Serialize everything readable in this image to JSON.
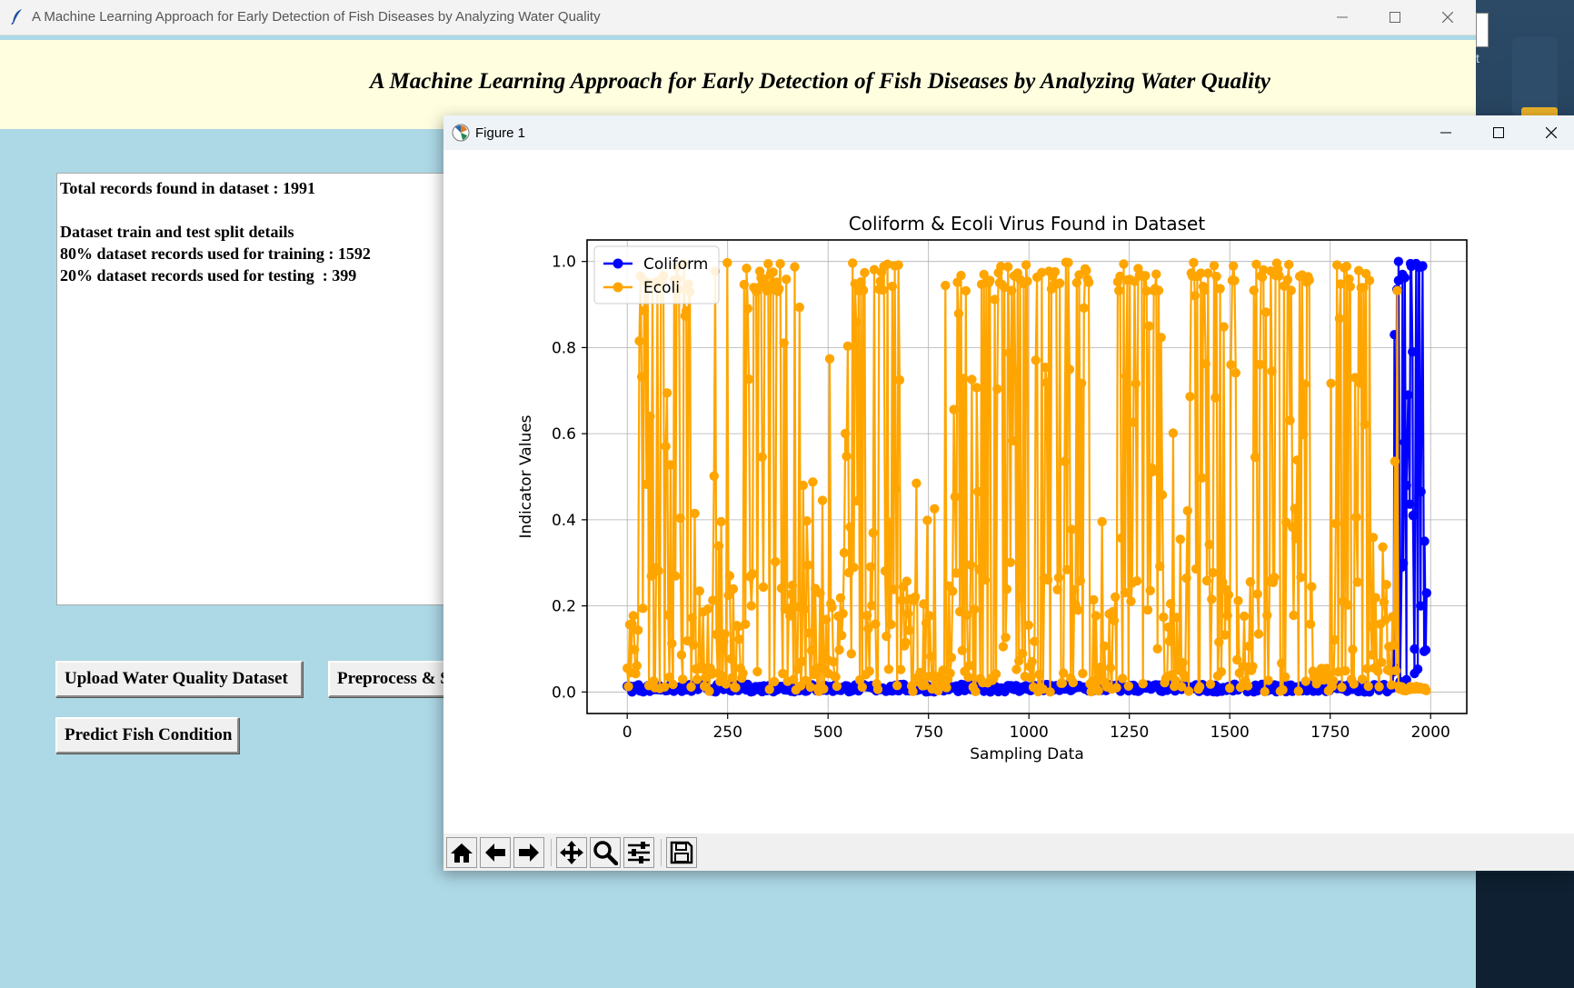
{
  "main_window": {
    "title": "A Machine Learning Approach for Early Detection of Fish Diseases by Analyzing Water Quality",
    "heading": "A Machine Learning Approach for Early Detection of Fish Diseases by Analyzing Water Quality",
    "output_text": "Total records found in dataset : 1991\n\nDataset train and test split details\n80% dataset records used for training : 1592\n20% dataset records used for testing  : 399",
    "buttons": {
      "upload": "Upload Water Quality Dataset",
      "preprocess": "Preprocess & Split Dataset",
      "predict": "Predict Fish Condition"
    }
  },
  "desktop": {
    "partial_label": "t"
  },
  "figure_window": {
    "title": "Figure 1",
    "toolbar": [
      "home-icon",
      "back-arrow-icon",
      "forward-arrow-icon",
      "pan-icon",
      "zoom-icon",
      "configure-subplots-icon",
      "save-icon"
    ]
  },
  "chart_data": {
    "type": "line",
    "title": "Coliform & Ecoli Virus Found in Dataset",
    "xlabel": "Sampling Data",
    "ylabel": "Indicator Values",
    "xlim": [
      -100,
      2090
    ],
    "ylim": [
      -0.05,
      1.05
    ],
    "x_ticks": [
      0,
      250,
      500,
      750,
      1000,
      1250,
      1500,
      1750,
      2000
    ],
    "y_ticks": [
      0.0,
      0.2,
      0.4,
      0.6,
      0.8,
      1.0
    ],
    "grid": true,
    "legend": "upper-left",
    "series": [
      {
        "name": "Coliform",
        "color": "#0000ff",
        "marker": "circle",
        "x_range": [
          0,
          1990
        ],
        "description_points": [
          [
            0,
            0.005
          ],
          [
            300,
            0.004
          ],
          [
            600,
            0.01
          ],
          [
            750,
            0.015
          ],
          [
            900,
            0.008
          ],
          [
            1200,
            0.01
          ],
          [
            1500,
            0.006
          ],
          [
            1800,
            0.01
          ],
          [
            1900,
            0.02
          ],
          [
            1910,
            0.83
          ],
          [
            1920,
            1.0
          ],
          [
            1930,
            0.97
          ],
          [
            1935,
            0.58
          ],
          [
            1940,
            0.48
          ],
          [
            1950,
            0.995
          ],
          [
            1955,
            0.79
          ],
          [
            1960,
            0.1
          ],
          [
            1970,
            0.99
          ],
          [
            1975,
            0.2
          ],
          [
            1980,
            0.99
          ],
          [
            1985,
            0.35
          ],
          [
            1990,
            0.23
          ]
        ]
      },
      {
        "name": "Ecoli",
        "color": "#ffa500",
        "marker": "circle",
        "x_range": [
          0,
          1990
        ],
        "burst_regions": [
          [
            30,
            170
          ],
          [
            290,
            400
          ],
          [
            540,
            680
          ],
          [
            790,
            1000
          ],
          [
            1020,
            1150
          ],
          [
            1220,
            1330
          ],
          [
            1390,
            1520
          ],
          [
            1560,
            1700
          ],
          [
            1760,
            1850
          ]
        ]
      }
    ]
  }
}
